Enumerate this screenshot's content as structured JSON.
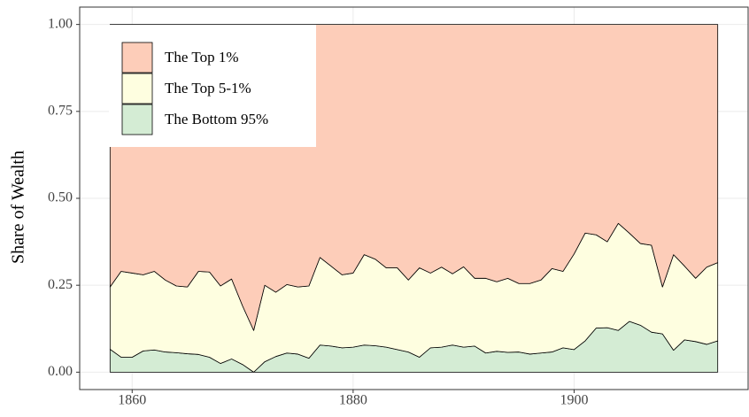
{
  "chart_data": {
    "type": "stacked_area",
    "y_label": "Share of Wealth",
    "x": [
      1858,
      1859,
      1860,
      1861,
      1862,
      1863,
      1864,
      1865,
      1866,
      1867,
      1868,
      1869,
      1870,
      1871,
      1872,
      1873,
      1874,
      1875,
      1876,
      1877,
      1878,
      1879,
      1880,
      1881,
      1882,
      1883,
      1884,
      1885,
      1886,
      1887,
      1888,
      1889,
      1890,
      1891,
      1892,
      1893,
      1894,
      1895,
      1896,
      1897,
      1898,
      1899,
      1900,
      1901,
      1902,
      1903,
      1904,
      1905,
      1906,
      1907,
      1908,
      1909,
      1910,
      1911,
      1912,
      1913
    ],
    "series": [
      {
        "name": "The Top 1%",
        "color": "#fdcdb9",
        "values": [
          0.755,
          0.71,
          0.715,
          0.72,
          0.71,
          0.735,
          0.752,
          0.755,
          0.71,
          0.712,
          0.752,
          0.732,
          0.81,
          0.88,
          0.75,
          0.77,
          0.748,
          0.755,
          0.752,
          0.67,
          0.695,
          0.72,
          0.715,
          0.662,
          0.675,
          0.7,
          0.7,
          0.735,
          0.7,
          0.715,
          0.698,
          0.717,
          0.697,
          0.73,
          0.73,
          0.74,
          0.73,
          0.745,
          0.745,
          0.735,
          0.702,
          0.71,
          0.66,
          0.6,
          0.605,
          0.625,
          0.572,
          0.6,
          0.63,
          0.635,
          0.755,
          0.662,
          0.695,
          0.73,
          0.698,
          0.685
        ]
      },
      {
        "name": "The Top 5-1%",
        "color": "#fefee0",
        "values": [
          0.179,
          0.247,
          0.242,
          0.219,
          0.226,
          0.207,
          0.192,
          0.192,
          0.239,
          0.245,
          0.223,
          0.23,
          0.168,
          0.12,
          0.22,
          0.185,
          0.197,
          0.193,
          0.208,
          0.252,
          0.23,
          0.21,
          0.213,
          0.26,
          0.249,
          0.228,
          0.235,
          0.207,
          0.257,
          0.215,
          0.23,
          0.205,
          0.231,
          0.195,
          0.215,
          0.2,
          0.213,
          0.197,
          0.203,
          0.21,
          0.24,
          0.22,
          0.275,
          0.31,
          0.268,
          0.247,
          0.308,
          0.254,
          0.235,
          0.25,
          0.135,
          0.275,
          0.212,
          0.182,
          0.222,
          0.225
        ]
      },
      {
        "name": "The Bottom 95%",
        "color": "#d4ecd4",
        "values": [
          0.066,
          0.043,
          0.043,
          0.061,
          0.064,
          0.058,
          0.056,
          0.053,
          0.051,
          0.043,
          0.025,
          0.038,
          0.022,
          0.0,
          0.03,
          0.045,
          0.055,
          0.052,
          0.04,
          0.078,
          0.075,
          0.07,
          0.072,
          0.078,
          0.076,
          0.072,
          0.065,
          0.058,
          0.043,
          0.07,
          0.072,
          0.078,
          0.072,
          0.075,
          0.055,
          0.06,
          0.057,
          0.058,
          0.052,
          0.055,
          0.058,
          0.07,
          0.065,
          0.09,
          0.127,
          0.128,
          0.12,
          0.146,
          0.135,
          0.115,
          0.11,
          0.063,
          0.093,
          0.088,
          0.08,
          0.09
        ]
      }
    ],
    "xlim": [
      1855.25,
      1915.75
    ],
    "xticks": [
      1860,
      1880,
      1900
    ],
    "ylim": [
      -0.05,
      1.05
    ],
    "yticks": [
      {
        "value": 0,
        "label": "0.00"
      },
      {
        "value": 0.25,
        "label": "0.25"
      },
      {
        "value": 0.5,
        "label": "0.50"
      },
      {
        "value": 0.75,
        "label": "0.75"
      },
      {
        "value": 1,
        "label": "1.00"
      }
    ],
    "grid": true,
    "legend": "top-left"
  }
}
